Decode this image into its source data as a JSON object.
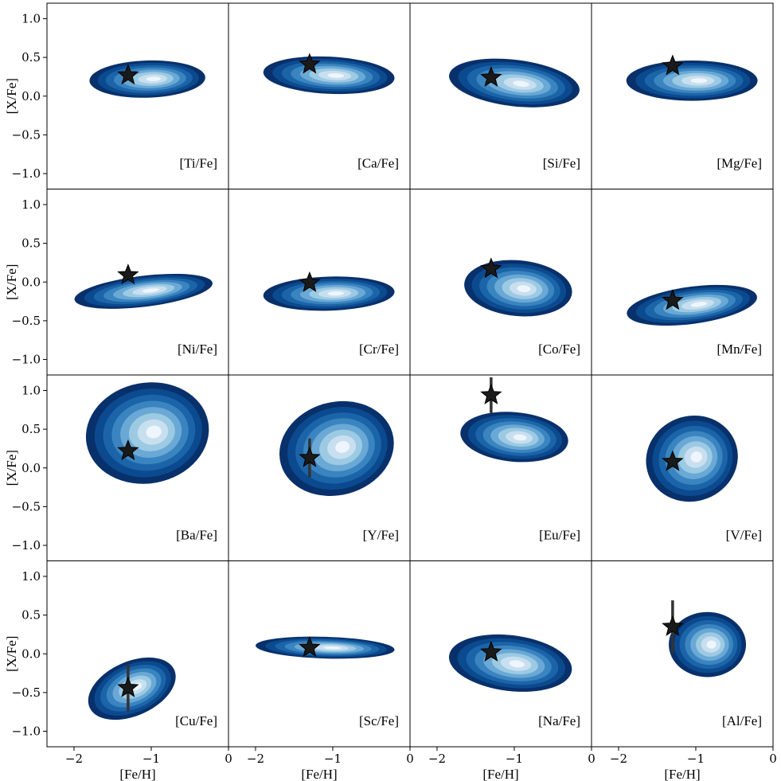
{
  "figure": {
    "ylabel": "[X/Fe]",
    "xlabel": "[Fe/H]",
    "xlim": [
      -2.35,
      0.0
    ],
    "ylim": [
      -1.2,
      1.2
    ],
    "xticks": [
      -2,
      -1,
      0
    ],
    "xtick_labels": [
      "−2",
      "−1",
      "0"
    ],
    "yticks": [
      1.0,
      0.5,
      0.0,
      -0.5,
      -1.0
    ],
    "ytick_labels": [
      "1.0",
      "0.5",
      "0.0",
      "−0.5",
      "−1.0"
    ],
    "colormap": "Blues",
    "contour_colors": [
      "#08306b",
      "#0b4a8f",
      "#1c64a8",
      "#3a84c0",
      "#6aa8d5",
      "#9ccae3",
      "#c8dff0",
      "#eef5fc"
    ],
    "marker_color": "#1a1a1a",
    "errorbar_color": "#333333"
  },
  "chart_data": [
    {
      "type": "contour",
      "label": "[Ti/Fe]",
      "center": [
        -1.05,
        0.22
      ],
      "spread": [
        0.75,
        0.24
      ],
      "tilt": 0.05,
      "star": {
        "x": -1.3,
        "y": 0.27,
        "yerr": 0.0
      }
    },
    {
      "type": "contour",
      "label": "[Ca/Fe]",
      "center": [
        -1.05,
        0.27
      ],
      "spread": [
        0.85,
        0.24
      ],
      "tilt": -0.08,
      "star": {
        "x": -1.3,
        "y": 0.41,
        "yerr": 0.0
      }
    },
    {
      "type": "contour",
      "label": "[Si/Fe]",
      "center": [
        -1.0,
        0.17
      ],
      "spread": [
        0.85,
        0.3
      ],
      "tilt": -0.2,
      "star": {
        "x": -1.3,
        "y": 0.24,
        "yerr": 0.0
      }
    },
    {
      "type": "contour",
      "label": "[Mg/Fe]",
      "center": [
        -1.05,
        0.2
      ],
      "spread": [
        0.85,
        0.26
      ],
      "tilt": 0.0,
      "star": {
        "x": -1.3,
        "y": 0.39,
        "yerr": 0.0
      }
    },
    {
      "type": "contour",
      "label": "[Ni/Fe]",
      "center": [
        -1.1,
        -0.12
      ],
      "spread": [
        0.9,
        0.2
      ],
      "tilt": 0.2,
      "star": {
        "x": -1.3,
        "y": 0.09,
        "yerr": 0.0
      }
    },
    {
      "type": "contour",
      "label": "[Cr/Fe]",
      "center": [
        -1.05,
        -0.15
      ],
      "spread": [
        0.85,
        0.22
      ],
      "tilt": 0.05,
      "star": {
        "x": -1.3,
        "y": -0.01,
        "yerr": 0.0
      }
    },
    {
      "type": "contour",
      "label": "[Co/Fe]",
      "center": [
        -0.95,
        -0.08
      ],
      "spread": [
        0.7,
        0.36
      ],
      "tilt": -0.15,
      "star": {
        "x": -1.3,
        "y": 0.17,
        "yerr": 0.0
      }
    },
    {
      "type": "contour",
      "label": "[Mn/Fe]",
      "center": [
        -1.05,
        -0.3
      ],
      "spread": [
        0.85,
        0.24
      ],
      "tilt": 0.22,
      "star": {
        "x": -1.3,
        "y": -0.24,
        "yerr": 0.0
      }
    },
    {
      "type": "contour",
      "label": "[Ba/Fe]",
      "center": [
        -1.05,
        0.45
      ],
      "spread": [
        0.8,
        0.65
      ],
      "tilt": 0.3,
      "star": {
        "x": -1.3,
        "y": 0.22,
        "yerr": 0.0
      }
    },
    {
      "type": "contour",
      "label": "[Y/Fe]",
      "center": [
        -0.95,
        0.25
      ],
      "spread": [
        0.75,
        0.6
      ],
      "tilt": 0.45,
      "star": {
        "x": -1.3,
        "y": 0.13,
        "yerr": 0.25
      }
    },
    {
      "type": "contour",
      "label": "[Eu/Fe]",
      "center": [
        -1.0,
        0.4
      ],
      "spread": [
        0.7,
        0.32
      ],
      "tilt": -0.15,
      "star": {
        "x": -1.3,
        "y": 0.94,
        "yerr": 0.23
      }
    },
    {
      "type": "contour",
      "label": "[V/Fe]",
      "center": [
        -1.05,
        0.12
      ],
      "spread": [
        0.6,
        0.55
      ],
      "tilt": 0.6,
      "star": {
        "x": -1.3,
        "y": 0.08,
        "yerr": 0.0
      }
    },
    {
      "type": "contour",
      "label": "[Cu/Fe]",
      "center": [
        -1.25,
        -0.45
      ],
      "spread": [
        0.6,
        0.35
      ],
      "tilt": 0.7,
      "star": {
        "x": -1.3,
        "y": -0.44,
        "yerr": 0.3
      }
    },
    {
      "type": "contour",
      "label": "[Sc/Fe]",
      "center": [
        -1.1,
        0.08
      ],
      "spread": [
        0.9,
        0.14
      ],
      "tilt": -0.05,
      "star": {
        "x": -1.3,
        "y": 0.08,
        "yerr": 0.0
      }
    },
    {
      "type": "contour",
      "label": "[Na/Fe]",
      "center": [
        -1.05,
        -0.12
      ],
      "spread": [
        0.8,
        0.36
      ],
      "tilt": -0.2,
      "star": {
        "x": -1.3,
        "y": 0.02,
        "yerr": 0.0
      }
    },
    {
      "type": "contour",
      "label": "[Al/Fe]",
      "center": [
        -0.85,
        0.12
      ],
      "spread": [
        0.5,
        0.42
      ],
      "tilt": 0.0,
      "star": {
        "x": -1.3,
        "y": 0.35,
        "yerr": 0.34
      }
    }
  ]
}
